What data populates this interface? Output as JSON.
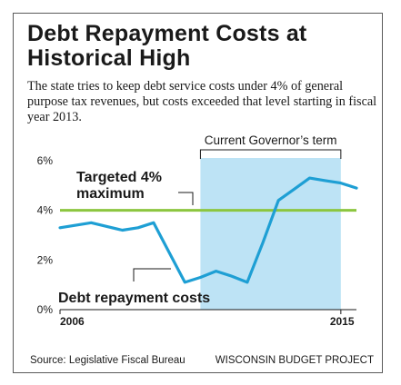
{
  "title": "Debt Repayment Costs at Historical High",
  "subtitle": "The state tries to keep debt service costs under 4% of general purpose tax revenues, but costs exceeded that level starting in fiscal year 2013.",
  "footer": {
    "source": "Source: Legislative Fiscal Bureau",
    "credit": "WISCONSIN BUDGET PROJECT"
  },
  "colors": {
    "line": "#1e9fd4",
    "target": "#8cc63f",
    "shade": "#bde3f5"
  },
  "chart_data": {
    "type": "line",
    "x": [
      2006,
      2006.5,
      2007,
      2007.5,
      2008,
      2008.5,
      2009,
      2009.5,
      2010,
      2010.5,
      2011,
      2011.5,
      2012,
      2012.5,
      2013,
      2013.5,
      2014,
      2014.5,
      2015,
      2015.5
    ],
    "series": [
      {
        "name": "Debt repayment costs",
        "values": [
          3.3,
          3.4,
          3.5,
          3.35,
          3.2,
          3.3,
          3.5,
          2.3,
          1.1,
          1.3,
          1.55,
          1.35,
          1.1,
          2.7,
          4.4,
          4.85,
          5.3,
          5.2,
          5.1,
          4.9
        ]
      }
    ],
    "target": {
      "value": 4,
      "label": "Targeted 4% maximum",
      "label_line1": "Targeted 4%",
      "label_line2": "maximum"
    },
    "series_label": "Debt repayment costs",
    "shaded_region": {
      "x_start": 2010.5,
      "x_end": 2015,
      "label": "Current Governor’s term"
    },
    "xticks": [
      2006,
      2015
    ],
    "xtick_labels": [
      "2006",
      "2015"
    ],
    "yticks": [
      0,
      2,
      4,
      6
    ],
    "ytick_labels": [
      "0%",
      "2%",
      "4%",
      "6%"
    ],
    "xlim": [
      2006,
      2015.5
    ],
    "ylim": [
      0,
      6
    ],
    "grid": false
  }
}
